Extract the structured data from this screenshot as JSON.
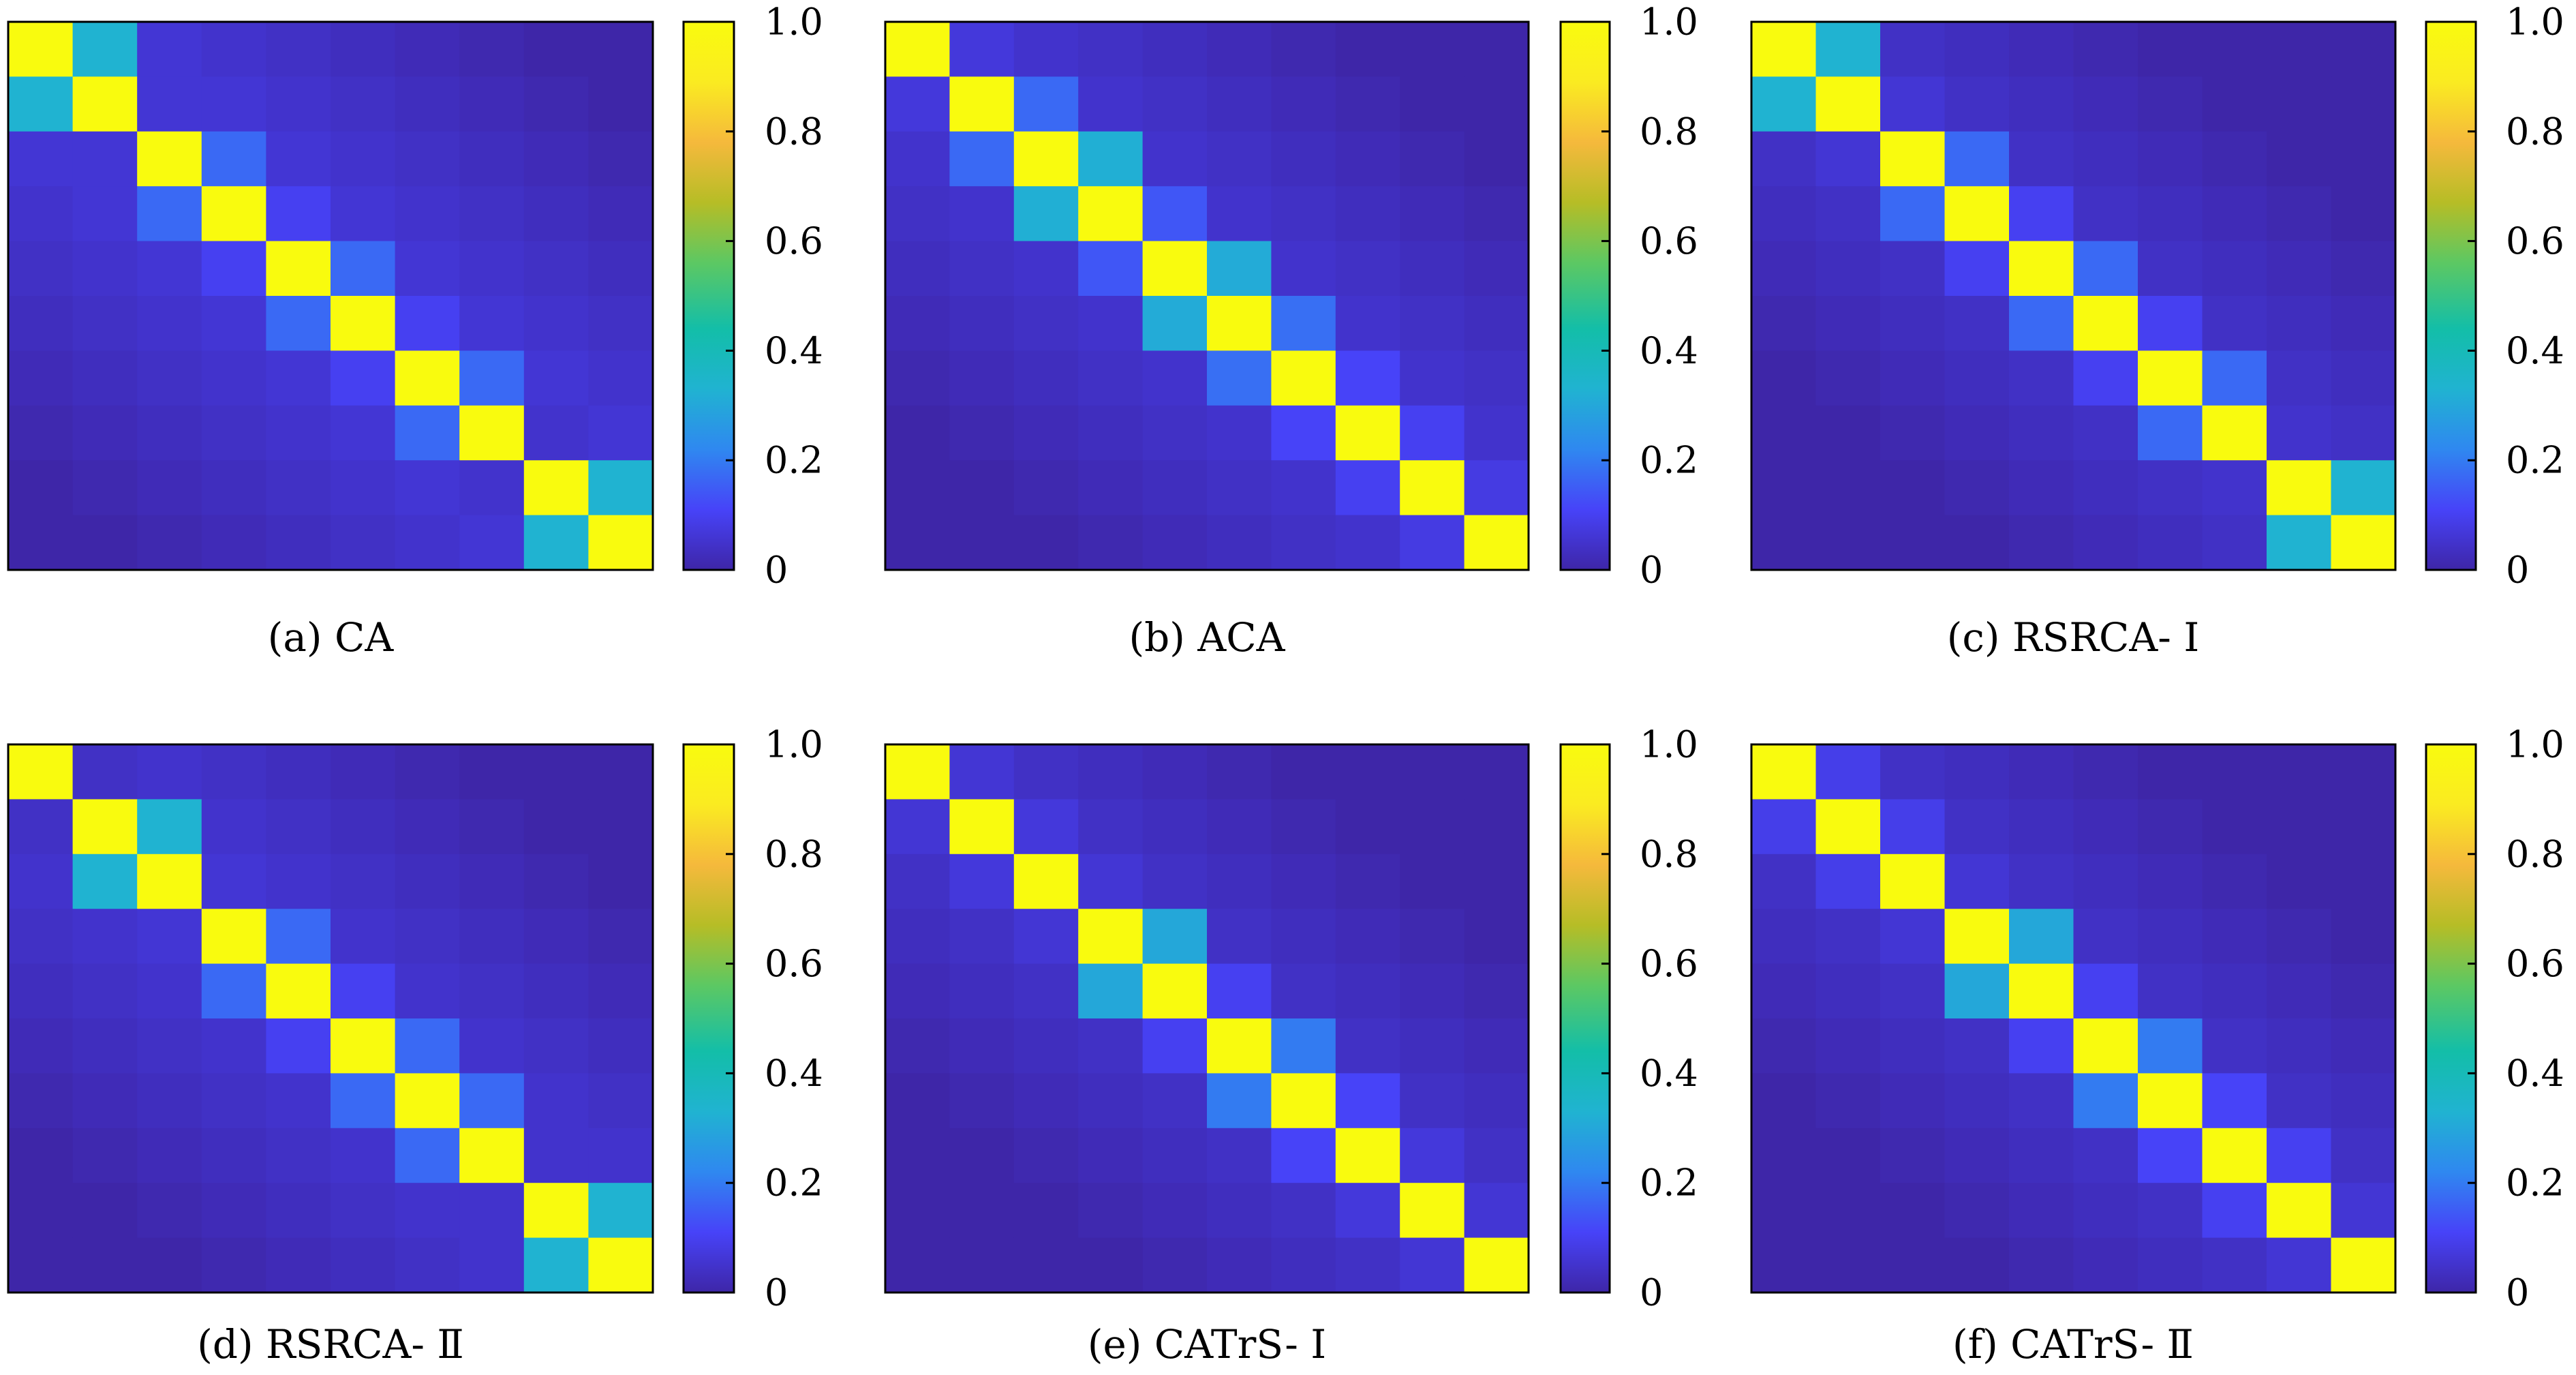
{
  "colorbar": {
    "ticks": [
      "1.0",
      "0.8",
      "0.6",
      "0.4",
      "0.2",
      "0"
    ],
    "colormap": "parula",
    "colors": [
      "#3e26a8",
      "#4743f8",
      "#2f88f0",
      "#20b3d1",
      "#13bea8",
      "#5cc863",
      "#b6bd26",
      "#f5b93c",
      "#faeb21",
      "#f9fb0e"
    ]
  },
  "chart_data": [
    {
      "type": "heatmap",
      "caption": "(a) CA",
      "grid": 10,
      "zlim": [
        0,
        1
      ],
      "offdiag": [
        0.33,
        0.06,
        0.17,
        0.1,
        0.17,
        0.1,
        0.17,
        0.05,
        0.33
      ],
      "background": 0.06
    },
    {
      "type": "heatmap",
      "caption": "(b) ACA",
      "grid": 10,
      "zlim": [
        0,
        1
      ],
      "offdiag": [
        0.07,
        0.17,
        0.32,
        0.14,
        0.31,
        0.18,
        0.11,
        0.1,
        0.08
      ],
      "background": 0.05
    },
    {
      "type": "heatmap",
      "caption": "(c) RSRCA- Ⅰ",
      "grid": 10,
      "zlim": [
        0,
        1
      ],
      "offdiag": [
        0.33,
        0.06,
        0.17,
        0.1,
        0.17,
        0.1,
        0.17,
        0.05,
        0.33
      ],
      "background": 0.04
    },
    {
      "type": "heatmap",
      "caption": "(d) RSRCA- Ⅱ",
      "grid": 10,
      "zlim": [
        0,
        1
      ],
      "offdiag": [
        0.04,
        0.33,
        0.06,
        0.17,
        0.1,
        0.17,
        0.17,
        0.05,
        0.33
      ],
      "background": 0.05
    },
    {
      "type": "heatmap",
      "caption": "(e) CATrS- Ⅰ",
      "grid": 10,
      "zlim": [
        0,
        1
      ],
      "offdiag": [
        0.06,
        0.07,
        0.06,
        0.3,
        0.1,
        0.2,
        0.11,
        0.07,
        0.06
      ],
      "background": 0.04
    },
    {
      "type": "heatmap",
      "caption": "(f) CATrS- Ⅱ",
      "grid": 10,
      "zlim": [
        0,
        1
      ],
      "offdiag": [
        0.09,
        0.09,
        0.06,
        0.3,
        0.1,
        0.2,
        0.11,
        0.1,
        0.06
      ],
      "background": 0.04
    }
  ]
}
